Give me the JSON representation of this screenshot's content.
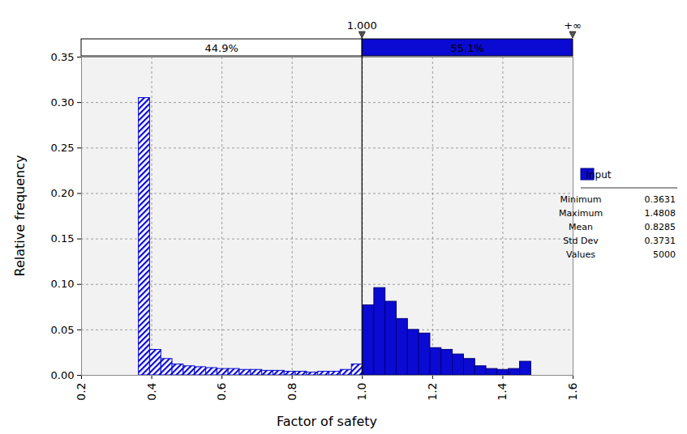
{
  "chart_data": {
    "type": "histogram",
    "xlabel": "Factor of safety",
    "ylabel": "Relative frequency",
    "bins": [
      0.3631,
      0.395,
      0.427,
      0.4589,
      0.4908,
      0.5228,
      0.5547,
      0.5866,
      0.6186,
      0.6505,
      0.6824,
      0.7144,
      0.7463,
      0.7782,
      0.8102,
      0.8421,
      0.874,
      0.906,
      0.9379,
      0.9698,
      1.0017,
      1.0337,
      1.0656,
      1.0975,
      1.1295,
      1.1614,
      1.1933,
      1.2253,
      1.2572,
      1.2891,
      1.3211,
      1.353,
      1.3849,
      1.4169,
      1.4488,
      1.4808
    ],
    "values": [
      0.305,
      0.028,
      0.018,
      0.012,
      0.01,
      0.009,
      0.008,
      0.007,
      0.007,
      0.006,
      0.006,
      0.005,
      0.005,
      0.004,
      0.004,
      0.003,
      0.004,
      0.004,
      0.006,
      0.012,
      0.077,
      0.096,
      0.081,
      0.062,
      0.05,
      0.046,
      0.03,
      0.028,
      0.023,
      0.018,
      0.01,
      0.007,
      0.006,
      0.007,
      0.015
    ],
    "color": "#0a0ad2",
    "xlim": [
      0.2,
      1.6
    ],
    "xticks": [
      0.2,
      0.4,
      0.6,
      0.8,
      {
        "value": 1,
        "label": "1.0"
      },
      1.2,
      1.4,
      1.6
    ],
    "ylim": [
      0,
      0.35
    ],
    "yticks": [
      {
        "value": 0,
        "label": "0.00"
      },
      {
        "value": 0.05,
        "label": "0.05"
      },
      {
        "value": 0.1,
        "label": "0.10"
      },
      {
        "value": 0.15,
        "label": "0.15"
      },
      {
        "value": 0.2,
        "label": "0.20"
      },
      {
        "value": 0.25,
        "label": "0.25"
      },
      {
        "value": 0.3,
        "label": "0.30"
      },
      {
        "value": 0.35,
        "label": "0.35"
      }
    ],
    "grid": true,
    "series": [
      {
        "name": "Input",
        "color": "#0a0ad2"
      }
    ],
    "delimiters": [
      {
        "value": 1,
        "label": "1.000"
      },
      {
        "label": "+∞"
      }
    ],
    "regions": [
      {
        "value": 44.9,
        "label": "44.9%"
      },
      {
        "value": 55.1,
        "label": "55.1%"
      }
    ],
    "statistics": [
      {
        "label": "Minimum",
        "value": 0.3631
      },
      {
        "label": "Maximum",
        "value": 1.4808
      },
      {
        "label": "Mean",
        "value": 0.8285
      },
      {
        "label": "Std Dev",
        "value": 0.3731
      },
      {
        "label": "Values",
        "value": 5000
      }
    ]
  }
}
